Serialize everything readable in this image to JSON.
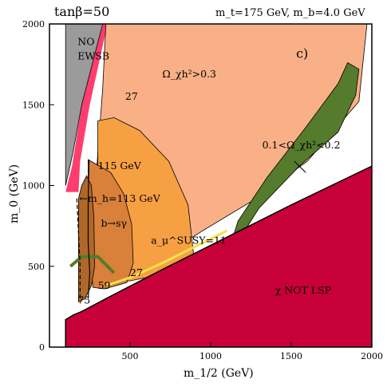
{
  "chart_data": {
    "type": "area",
    "title_left": "tanβ=50",
    "title_right": "m_t=175 GeV,  m_b=4.0 GeV",
    "panel_label": "c)",
    "xlabel": "m_1/2 (GeV)",
    "ylabel": "m_0 (GeV)",
    "xlim": [
      100,
      2000
    ],
    "ylim": [
      0,
      2000
    ],
    "xticks": [
      500,
      1000,
      1500,
      2000
    ],
    "yticks": [
      0,
      500,
      1000,
      1500,
      2000
    ],
    "colors": {
      "excluded_lsp": "#c8003a",
      "pink_band": "#ff3d6e",
      "no_ewsb": "#9b9b9b",
      "relic_high": "#f9b086",
      "relic_favored": "#557b2c",
      "g2_band": "#f7a043",
      "bsg": "#d9803a",
      "higgs": "#b06828",
      "yellow_edge": "#f2e24a"
    },
    "regions": {
      "no_ewsb": {
        "label": "NO EWSB",
        "polygon": [
          [
            100,
            2000
          ],
          [
            330,
            2000
          ],
          [
            200,
            1500
          ],
          [
            145,
            1200
          ],
          [
            100,
            1000
          ]
        ]
      },
      "excluded_lsp": {
        "label": "χ NOT LSP",
        "polygon": [
          [
            100,
            170
          ],
          [
            150,
            200
          ],
          [
            200,
            220
          ],
          [
            350,
            300
          ],
          [
            700,
            480
          ],
          [
            1000,
            630
          ],
          [
            1500,
            880
          ],
          [
            2000,
            1120
          ],
          [
            2000,
            0
          ],
          [
            100,
            0
          ]
        ]
      },
      "relic_high": {
        "label": "Ω_χh²>0.3",
        "polygon": [
          [
            350,
            2000
          ],
          [
            1970,
            2000
          ],
          [
            1920,
            1520
          ],
          [
            1600,
            1150
          ],
          [
            1250,
            900
          ],
          [
            950,
            720
          ],
          [
            700,
            560
          ],
          [
            480,
            450
          ],
          [
            370,
            410
          ],
          [
            300,
            400
          ],
          [
            270,
            600
          ],
          [
            280,
            900
          ],
          [
            300,
            1200
          ],
          [
            330,
            1600
          ]
        ]
      },
      "relic_favored": {
        "label": "0.1<Ω_χh²<0.2",
        "polygon": [
          [
            1090,
            530
          ],
          [
            1300,
            860
          ],
          [
            1550,
            1120
          ],
          [
            1790,
            1330
          ],
          [
            1900,
            1560
          ],
          [
            1920,
            1720
          ],
          [
            1850,
            1760
          ],
          [
            1790,
            1630
          ],
          [
            1590,
            1360
          ],
          [
            1350,
            1050
          ],
          [
            1170,
            780
          ]
        ]
      },
      "g2": {
        "label": "a_μ^SUSY=11",
        "polygon": [
          [
            300,
            1400
          ],
          [
            400,
            1420
          ],
          [
            560,
            1340
          ],
          [
            740,
            1150
          ],
          [
            860,
            880
          ],
          [
            900,
            520
          ],
          [
            700,
            450
          ],
          [
            500,
            410
          ],
          [
            330,
            400
          ],
          [
            300,
            700
          ]
        ]
      },
      "bsg": {
        "label": "b→sγ",
        "polygon": [
          [
            240,
            1160
          ],
          [
            380,
            1080
          ],
          [
            460,
            950
          ],
          [
            510,
            760
          ],
          [
            520,
            520
          ],
          [
            480,
            400
          ],
          [
            340,
            360
          ],
          [
            270,
            370
          ],
          [
            240,
            700
          ]
        ]
      },
      "higgs": {
        "label": "m_h=113 GeV",
        "polygon": [
          [
            180,
            920
          ],
          [
            200,
            1000
          ],
          [
            230,
            1060
          ],
          [
            260,
            1000
          ],
          [
            275,
            800
          ],
          [
            280,
            500
          ],
          [
            260,
            380
          ],
          [
            220,
            300
          ],
          [
            180,
            280
          ]
        ]
      }
    },
    "contours": [
      {
        "label": "m_h=115 GeV",
        "points": [
          [
            245,
            1160
          ],
          [
            240,
            900
          ],
          [
            240,
            650
          ],
          [
            250,
            460
          ],
          [
            240,
            300
          ]
        ]
      },
      {
        "label": "m_h=113 GeV",
        "points": [
          [
            170,
            920
          ],
          [
            180,
            700
          ],
          [
            190,
            500
          ],
          [
            190,
            300
          ]
        ]
      }
    ],
    "region_labels": [
      {
        "text": "NO",
        "x": 175,
        "y": 1870
      },
      {
        "text": "EWSB",
        "x": 175,
        "y": 1780
      },
      {
        "text": "Ω_χh²>0.3",
        "x": 700,
        "y": 1670
      },
      {
        "text": "27",
        "x": 470,
        "y": 1530
      },
      {
        "text": "115 GeV",
        "x": 300,
        "y": 1100
      },
      {
        "text": "←m_h=113 GeV",
        "x": 185,
        "y": 900
      },
      {
        "text": "b→sγ",
        "x": 320,
        "y": 745
      },
      {
        "text": "a_μ^SUSY=11",
        "x": 630,
        "y": 640
      },
      {
        "text": "27",
        "x": 500,
        "y": 440
      },
      {
        "text": "59",
        "x": 300,
        "y": 360
      },
      {
        "text": "75",
        "x": 175,
        "y": 270
      },
      {
        "text": "0.1<Ω_χh²<0.2",
        "x": 1320,
        "y": 1230
      },
      {
        "text": "χ NOT LSP",
        "x": 1400,
        "y": 330
      },
      {
        "text": "c)",
        "x": 1530,
        "y": 1790
      }
    ]
  }
}
